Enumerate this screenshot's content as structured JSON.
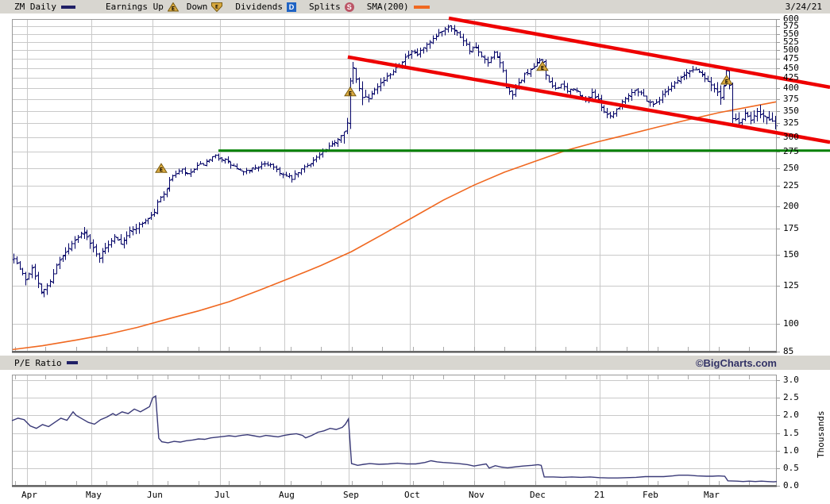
{
  "header": {
    "symbol": "ZM Daily",
    "date": "3/24/21",
    "legend": {
      "earnings_up": "Earnings Up",
      "down": "Down",
      "dividends": "Dividends",
      "dividends_badge": "D",
      "splits": "Splits",
      "splits_badge": "S",
      "sma": "SMA(200)",
      "earnings_marker_letter": "E"
    }
  },
  "mid_strip": {
    "pe_label": "P/E Ratio",
    "copyright": "©BigCharts.com"
  },
  "colors": {
    "strip_bg": "#d8d6d0",
    "plot_bg": "#ffffff",
    "grid": "#c9c9c9",
    "frame": "#999999",
    "frame_dark": "#555555",
    "price_bars": "#000066",
    "sma200": "#f06820",
    "trendline": "#ee0000",
    "support_line": "#008000",
    "pe_line": "#3a3a78",
    "earnings_fill": "#d9a940",
    "earnings_stroke": "#7a5c10",
    "dividends_badge": "#1f63c4",
    "splits_badge": "#bb5566",
    "navy_swatch": "#202066",
    "copyright_text": "#333366"
  },
  "chart_data": [
    {
      "type": "ohlc",
      "name": "ZM Daily price",
      "scale": "log",
      "ylim": [
        85,
        600
      ],
      "yticks": [
        600,
        575,
        550,
        525,
        500,
        475,
        450,
        425,
        400,
        375,
        350,
        325,
        300,
        275,
        250,
        225,
        200,
        175,
        150,
        125,
        100,
        85
      ],
      "x_axis": {
        "labels": [
          "Apr",
          "May",
          "Jun",
          "Jul",
          "Aug",
          "Sep",
          "Oct",
          "Nov",
          "Dec",
          "21",
          "Feb",
          "Mar"
        ],
        "month_start_days": [
          5,
          26,
          46,
          68,
          89,
          110,
          130,
          151,
          171,
          192,
          208,
          228
        ],
        "total_days": 250
      },
      "close_anchors": [
        [
          0,
          148
        ],
        [
          2,
          138
        ],
        [
          4,
          130
        ],
        [
          6,
          140
        ],
        [
          9,
          120
        ],
        [
          12,
          128
        ],
        [
          14,
          142
        ],
        [
          17,
          152
        ],
        [
          20,
          163
        ],
        [
          23,
          173
        ],
        [
          25,
          160
        ],
        [
          28,
          148
        ],
        [
          31,
          160
        ],
        [
          33,
          168
        ],
        [
          35,
          161
        ],
        [
          38,
          172
        ],
        [
          41,
          179
        ],
        [
          44,
          186
        ],
        [
          46,
          193
        ],
        [
          47,
          204
        ],
        [
          48,
          210
        ],
        [
          50,
          222
        ],
        [
          52,
          240
        ],
        [
          55,
          247
        ],
        [
          57,
          240
        ],
        [
          60,
          252
        ],
        [
          63,
          258
        ],
        [
          66,
          268
        ],
        [
          69,
          262
        ],
        [
          72,
          252
        ],
        [
          75,
          243
        ],
        [
          78,
          249
        ],
        [
          81,
          254
        ],
        [
          84,
          256
        ],
        [
          86,
          248
        ],
        [
          88,
          240
        ],
        [
          91,
          235
        ],
        [
          94,
          248
        ],
        [
          97,
          258
        ],
        [
          100,
          270
        ],
        [
          103,
          282
        ],
        [
          106,
          297
        ],
        [
          108,
          312
        ],
        [
          109,
          326
        ],
        [
          110,
          415
        ],
        [
          111,
          448
        ],
        [
          112,
          420
        ],
        [
          114,
          381
        ],
        [
          116,
          378
        ],
        [
          118,
          400
        ],
        [
          120,
          412
        ],
        [
          122,
          426
        ],
        [
          124,
          443
        ],
        [
          126,
          461
        ],
        [
          128,
          478
        ],
        [
          130,
          492
        ],
        [
          132,
          487
        ],
        [
          134,
          506
        ],
        [
          136,
          521
        ],
        [
          138,
          541
        ],
        [
          140,
          561
        ],
        [
          142,
          576
        ],
        [
          143,
          572
        ],
        [
          145,
          552
        ],
        [
          147,
          531
        ],
        [
          149,
          501
        ],
        [
          151,
          506
        ],
        [
          153,
          479
        ],
        [
          155,
          463
        ],
        [
          157,
          489
        ],
        [
          159,
          466
        ],
        [
          160,
          441
        ],
        [
          161,
          404
        ],
        [
          163,
          381
        ],
        [
          165,
          411
        ],
        [
          167,
          433
        ],
        [
          169,
          442
        ],
        [
          171,
          462
        ],
        [
          172,
          471
        ],
        [
          173,
          468
        ],
        [
          174,
          431
        ],
        [
          175,
          411
        ],
        [
          177,
          399
        ],
        [
          179,
          409
        ],
        [
          181,
          391
        ],
        [
          183,
          400
        ],
        [
          185,
          382
        ],
        [
          187,
          371
        ],
        [
          189,
          390
        ],
        [
          191,
          371
        ],
        [
          193,
          349
        ],
        [
          195,
          339
        ],
        [
          197,
          353
        ],
        [
          199,
          369
        ],
        [
          201,
          385
        ],
        [
          203,
          397
        ],
        [
          205,
          389
        ],
        [
          207,
          373
        ],
        [
          209,
          363
        ],
        [
          211,
          375
        ],
        [
          213,
          391
        ],
        [
          215,
          406
        ],
        [
          217,
          419
        ],
        [
          219,
          431
        ],
        [
          221,
          442
        ],
        [
          223,
          447
        ],
        [
          225,
          433
        ],
        [
          227,
          418
        ],
        [
          229,
          399
        ],
        [
          231,
          379
        ],
        [
          232,
          401
        ],
        [
          233,
          441
        ],
        [
          234,
          404
        ],
        [
          235,
          336
        ],
        [
          237,
          326
        ],
        [
          239,
          343
        ],
        [
          241,
          332
        ],
        [
          243,
          350
        ],
        [
          245,
          339
        ],
        [
          247,
          331
        ],
        [
          249,
          323
        ],
        [
          250,
          325
        ]
      ],
      "sma200_anchors": [
        [
          0,
          86
        ],
        [
          10,
          88
        ],
        [
          21,
          91
        ],
        [
          31,
          94
        ],
        [
          41,
          98
        ],
        [
          51,
          103
        ],
        [
          61,
          108
        ],
        [
          71,
          114
        ],
        [
          81,
          122
        ],
        [
          91,
          131
        ],
        [
          101,
          141
        ],
        [
          111,
          153
        ],
        [
          121,
          169
        ],
        [
          131,
          187
        ],
        [
          141,
          207
        ],
        [
          151,
          226
        ],
        [
          161,
          244
        ],
        [
          171,
          260
        ],
        [
          181,
          277
        ],
        [
          191,
          291
        ],
        [
          201,
          304
        ],
        [
          211,
          318
        ],
        [
          221,
          332
        ],
        [
          231,
          346
        ],
        [
          241,
          358
        ],
        [
          250,
          369
        ]
      ],
      "earnings_markers": [
        {
          "day": 48.8,
          "value": 250
        },
        {
          "day": 110.6,
          "value": 392
        },
        {
          "day": 173.4,
          "value": 455
        },
        {
          "day": 233.6,
          "value": 420
        }
      ],
      "support_line": {
        "value": 277,
        "start_day": 67.5,
        "extends_past_axis": true
      },
      "channel_lines": [
        {
          "from_day": 142.8,
          "from_value": 603,
          "to_day": 267.4,
          "to_value": 402
        },
        {
          "from_day": 109.8,
          "from_value": 480,
          "to_day": 267.4,
          "to_value": 291
        }
      ]
    },
    {
      "type": "line",
      "name": "P/E Ratio",
      "unit": "Thousands",
      "scale": "linear",
      "ylim": [
        0.0,
        3.0
      ],
      "ytick_labels": [
        "3.0",
        "2.5",
        "2.0",
        "1.5",
        "1.0",
        "0.5",
        "0.0"
      ],
      "yticks": [
        3.0,
        2.5,
        2.0,
        1.5,
        1.0,
        0.5,
        0.0
      ],
      "points": [
        [
          0,
          1.85
        ],
        [
          2,
          1.92
        ],
        [
          4,
          1.88
        ],
        [
          6,
          1.7
        ],
        [
          8,
          1.63
        ],
        [
          10,
          1.74
        ],
        [
          12,
          1.68
        ],
        [
          14,
          1.8
        ],
        [
          16,
          1.92
        ],
        [
          18,
          1.86
        ],
        [
          20,
          2.1
        ],
        [
          21,
          2.0
        ],
        [
          23,
          1.9
        ],
        [
          25,
          1.8
        ],
        [
          27,
          1.75
        ],
        [
          29,
          1.88
        ],
        [
          31,
          1.95
        ],
        [
          33,
          2.05
        ],
        [
          34,
          2.0
        ],
        [
          36,
          2.1
        ],
        [
          38,
          2.05
        ],
        [
          40,
          2.18
        ],
        [
          42,
          2.1
        ],
        [
          44,
          2.2
        ],
        [
          45,
          2.25
        ],
        [
          46,
          2.5
        ],
        [
          47,
          2.55
        ],
        [
          48,
          1.35
        ],
        [
          49,
          1.25
        ],
        [
          51,
          1.22
        ],
        [
          53,
          1.26
        ],
        [
          55,
          1.24
        ],
        [
          57,
          1.28
        ],
        [
          59,
          1.3
        ],
        [
          61,
          1.33
        ],
        [
          63,
          1.32
        ],
        [
          65,
          1.36
        ],
        [
          67,
          1.38
        ],
        [
          69,
          1.4
        ],
        [
          71,
          1.42
        ],
        [
          73,
          1.4
        ],
        [
          75,
          1.43
        ],
        [
          77,
          1.45
        ],
        [
          79,
          1.42
        ],
        [
          81,
          1.39
        ],
        [
          83,
          1.43
        ],
        [
          85,
          1.41
        ],
        [
          87,
          1.39
        ],
        [
          89,
          1.43
        ],
        [
          91,
          1.46
        ],
        [
          93,
          1.48
        ],
        [
          95,
          1.43
        ],
        [
          96,
          1.36
        ],
        [
          98,
          1.43
        ],
        [
          100,
          1.52
        ],
        [
          102,
          1.56
        ],
        [
          104,
          1.63
        ],
        [
          106,
          1.6
        ],
        [
          108,
          1.66
        ],
        [
          109,
          1.75
        ],
        [
          110,
          1.9
        ],
        [
          111,
          0.63
        ],
        [
          113,
          0.58
        ],
        [
          115,
          0.61
        ],
        [
          117,
          0.63
        ],
        [
          120,
          0.61
        ],
        [
          123,
          0.62
        ],
        [
          126,
          0.64
        ],
        [
          129,
          0.62
        ],
        [
          132,
          0.62
        ],
        [
          135,
          0.66
        ],
        [
          137,
          0.71
        ],
        [
          139,
          0.68
        ],
        [
          141,
          0.66
        ],
        [
          143,
          0.65
        ],
        [
          146,
          0.63
        ],
        [
          149,
          0.6
        ],
        [
          151,
          0.56
        ],
        [
          153,
          0.59
        ],
        [
          155,
          0.62
        ],
        [
          156,
          0.5
        ],
        [
          158,
          0.57
        ],
        [
          160,
          0.53
        ],
        [
          162,
          0.51
        ],
        [
          164,
          0.53
        ],
        [
          167,
          0.56
        ],
        [
          170,
          0.58
        ],
        [
          172,
          0.6
        ],
        [
          173,
          0.58
        ],
        [
          174,
          0.25
        ],
        [
          177,
          0.25
        ],
        [
          180,
          0.24
        ],
        [
          183,
          0.25
        ],
        [
          186,
          0.24
        ],
        [
          189,
          0.25
        ],
        [
          192,
          0.23
        ],
        [
          195,
          0.22
        ],
        [
          198,
          0.22
        ],
        [
          201,
          0.23
        ],
        [
          204,
          0.24
        ],
        [
          207,
          0.26
        ],
        [
          210,
          0.26
        ],
        [
          213,
          0.26
        ],
        [
          216,
          0.28
        ],
        [
          218,
          0.3
        ],
        [
          221,
          0.3
        ],
        [
          224,
          0.28
        ],
        [
          227,
          0.27
        ],
        [
          229,
          0.27
        ],
        [
          231,
          0.28
        ],
        [
          233,
          0.27
        ],
        [
          234,
          0.14
        ],
        [
          237,
          0.13
        ],
        [
          239,
          0.12
        ],
        [
          241,
          0.13
        ],
        [
          243,
          0.12
        ],
        [
          245,
          0.13
        ],
        [
          247,
          0.12
        ],
        [
          249,
          0.11
        ],
        [
          250,
          0.12
        ]
      ]
    }
  ]
}
